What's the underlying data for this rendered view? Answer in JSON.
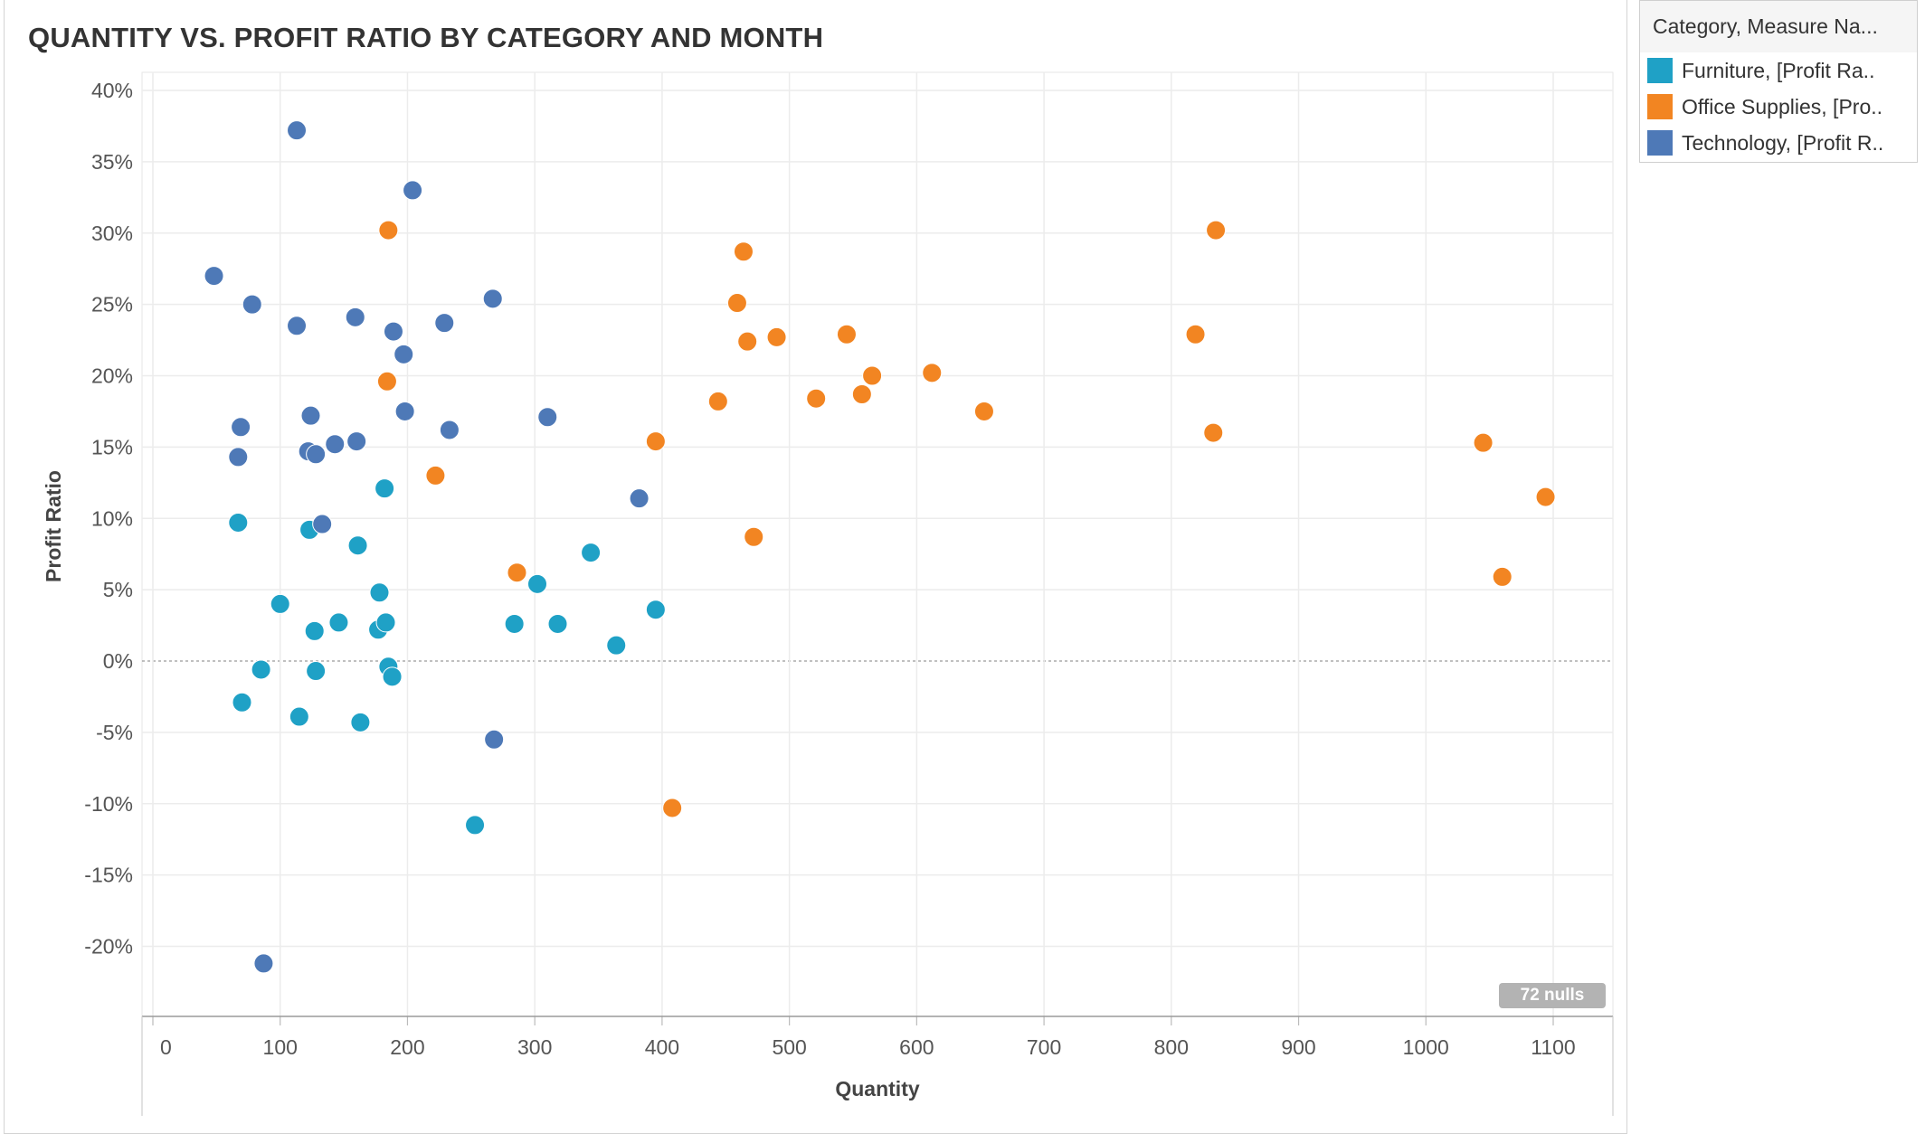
{
  "chart_data": {
    "type": "scatter",
    "title": "QUANTITY VS. PROFIT RATIO BY CATEGORY AND MONTH",
    "xlabel": "Quantity",
    "ylabel": "Profit Ratio",
    "xlim": [
      0,
      1150
    ],
    "ylim": [
      -0.25,
      0.4
    ],
    "x_ticks": [
      0,
      100,
      200,
      300,
      400,
      500,
      600,
      700,
      800,
      900,
      1000,
      1100
    ],
    "x_tick_labels": [
      "0",
      "100",
      "200",
      "300",
      "400",
      "500",
      "600",
      "700",
      "800",
      "900",
      "1000",
      "1100"
    ],
    "y_ticks": [
      0.4,
      0.35,
      0.3,
      0.25,
      0.2,
      0.15,
      0.1,
      0.05,
      0,
      -0.05,
      -0.1,
      -0.15,
      -0.2
    ],
    "y_tick_labels": [
      "40%",
      "35%",
      "30%",
      "25%",
      "20%",
      "15%",
      "10%",
      "5%",
      "0%",
      "-5%",
      "-10%",
      "-15%",
      "-20%"
    ],
    "grid": true,
    "legend_position": "right",
    "series": [
      {
        "name": "Furniture, [Profit Ra..",
        "color": "#1FA1C6",
        "points": [
          [
            67,
            0.097
          ],
          [
            123,
            0.092
          ],
          [
            182,
            0.121
          ],
          [
            161,
            0.081
          ],
          [
            100,
            0.04
          ],
          [
            178,
            0.048
          ],
          [
            146,
            0.027
          ],
          [
            127,
            0.021
          ],
          [
            177,
            0.022
          ],
          [
            183,
            0.027
          ],
          [
            302,
            0.054
          ],
          [
            284,
            0.026
          ],
          [
            318,
            0.026
          ],
          [
            344,
            0.076
          ],
          [
            395,
            0.036
          ],
          [
            364,
            0.011
          ],
          [
            85,
            -0.006
          ],
          [
            128,
            -0.007
          ],
          [
            185,
            -0.004
          ],
          [
            188,
            -0.011
          ],
          [
            70,
            -0.029
          ],
          [
            115,
            -0.039
          ],
          [
            163,
            -0.043
          ],
          [
            253,
            -0.115
          ]
        ]
      },
      {
        "name": "Office Supplies, [Pro..",
        "color": "#F28522",
        "points": [
          [
            185,
            0.302
          ],
          [
            184,
            0.196
          ],
          [
            222,
            0.13
          ],
          [
            286,
            0.062
          ],
          [
            395,
            0.154
          ],
          [
            408,
            -0.103
          ],
          [
            444,
            0.182
          ],
          [
            459,
            0.251
          ],
          [
            464,
            0.287
          ],
          [
            467,
            0.224
          ],
          [
            472,
            0.087
          ],
          [
            490,
            0.227
          ],
          [
            521,
            0.184
          ],
          [
            545,
            0.229
          ],
          [
            557,
            0.187
          ],
          [
            565,
            0.2
          ],
          [
            612,
            0.202
          ],
          [
            653,
            0.175
          ],
          [
            819,
            0.229
          ],
          [
            835,
            0.302
          ],
          [
            833,
            0.16
          ],
          [
            1045,
            0.153
          ],
          [
            1060,
            0.059
          ],
          [
            1094,
            0.115
          ]
        ]
      },
      {
        "name": "Technology, [Profit R..",
        "color": "#4E79B7",
        "points": [
          [
            113,
            0.372
          ],
          [
            204,
            0.33
          ],
          [
            48,
            0.27
          ],
          [
            78,
            0.25
          ],
          [
            113,
            0.235
          ],
          [
            159,
            0.241
          ],
          [
            189,
            0.231
          ],
          [
            229,
            0.237
          ],
          [
            267,
            0.254
          ],
          [
            197,
            0.215
          ],
          [
            198,
            0.175
          ],
          [
            124,
            0.172
          ],
          [
            69,
            0.164
          ],
          [
            233,
            0.162
          ],
          [
            310,
            0.171
          ],
          [
            67,
            0.143
          ],
          [
            122,
            0.147
          ],
          [
            128,
            0.145
          ],
          [
            143,
            0.152
          ],
          [
            160,
            0.154
          ],
          [
            133,
            0.096
          ],
          [
            382,
            0.114
          ],
          [
            268,
            -0.055
          ],
          [
            87,
            -0.212
          ]
        ]
      }
    ]
  },
  "legend": {
    "title": "Category, Measure Na...",
    "items": [
      {
        "label": "Furniture, [Profit Ra..",
        "color": "#1FA1C6"
      },
      {
        "label": "Office Supplies, [Pro..",
        "color": "#F28522"
      },
      {
        "label": "Technology, [Profit R..",
        "color": "#4E79B7"
      }
    ]
  },
  "nulls_indicator": "72 nulls"
}
